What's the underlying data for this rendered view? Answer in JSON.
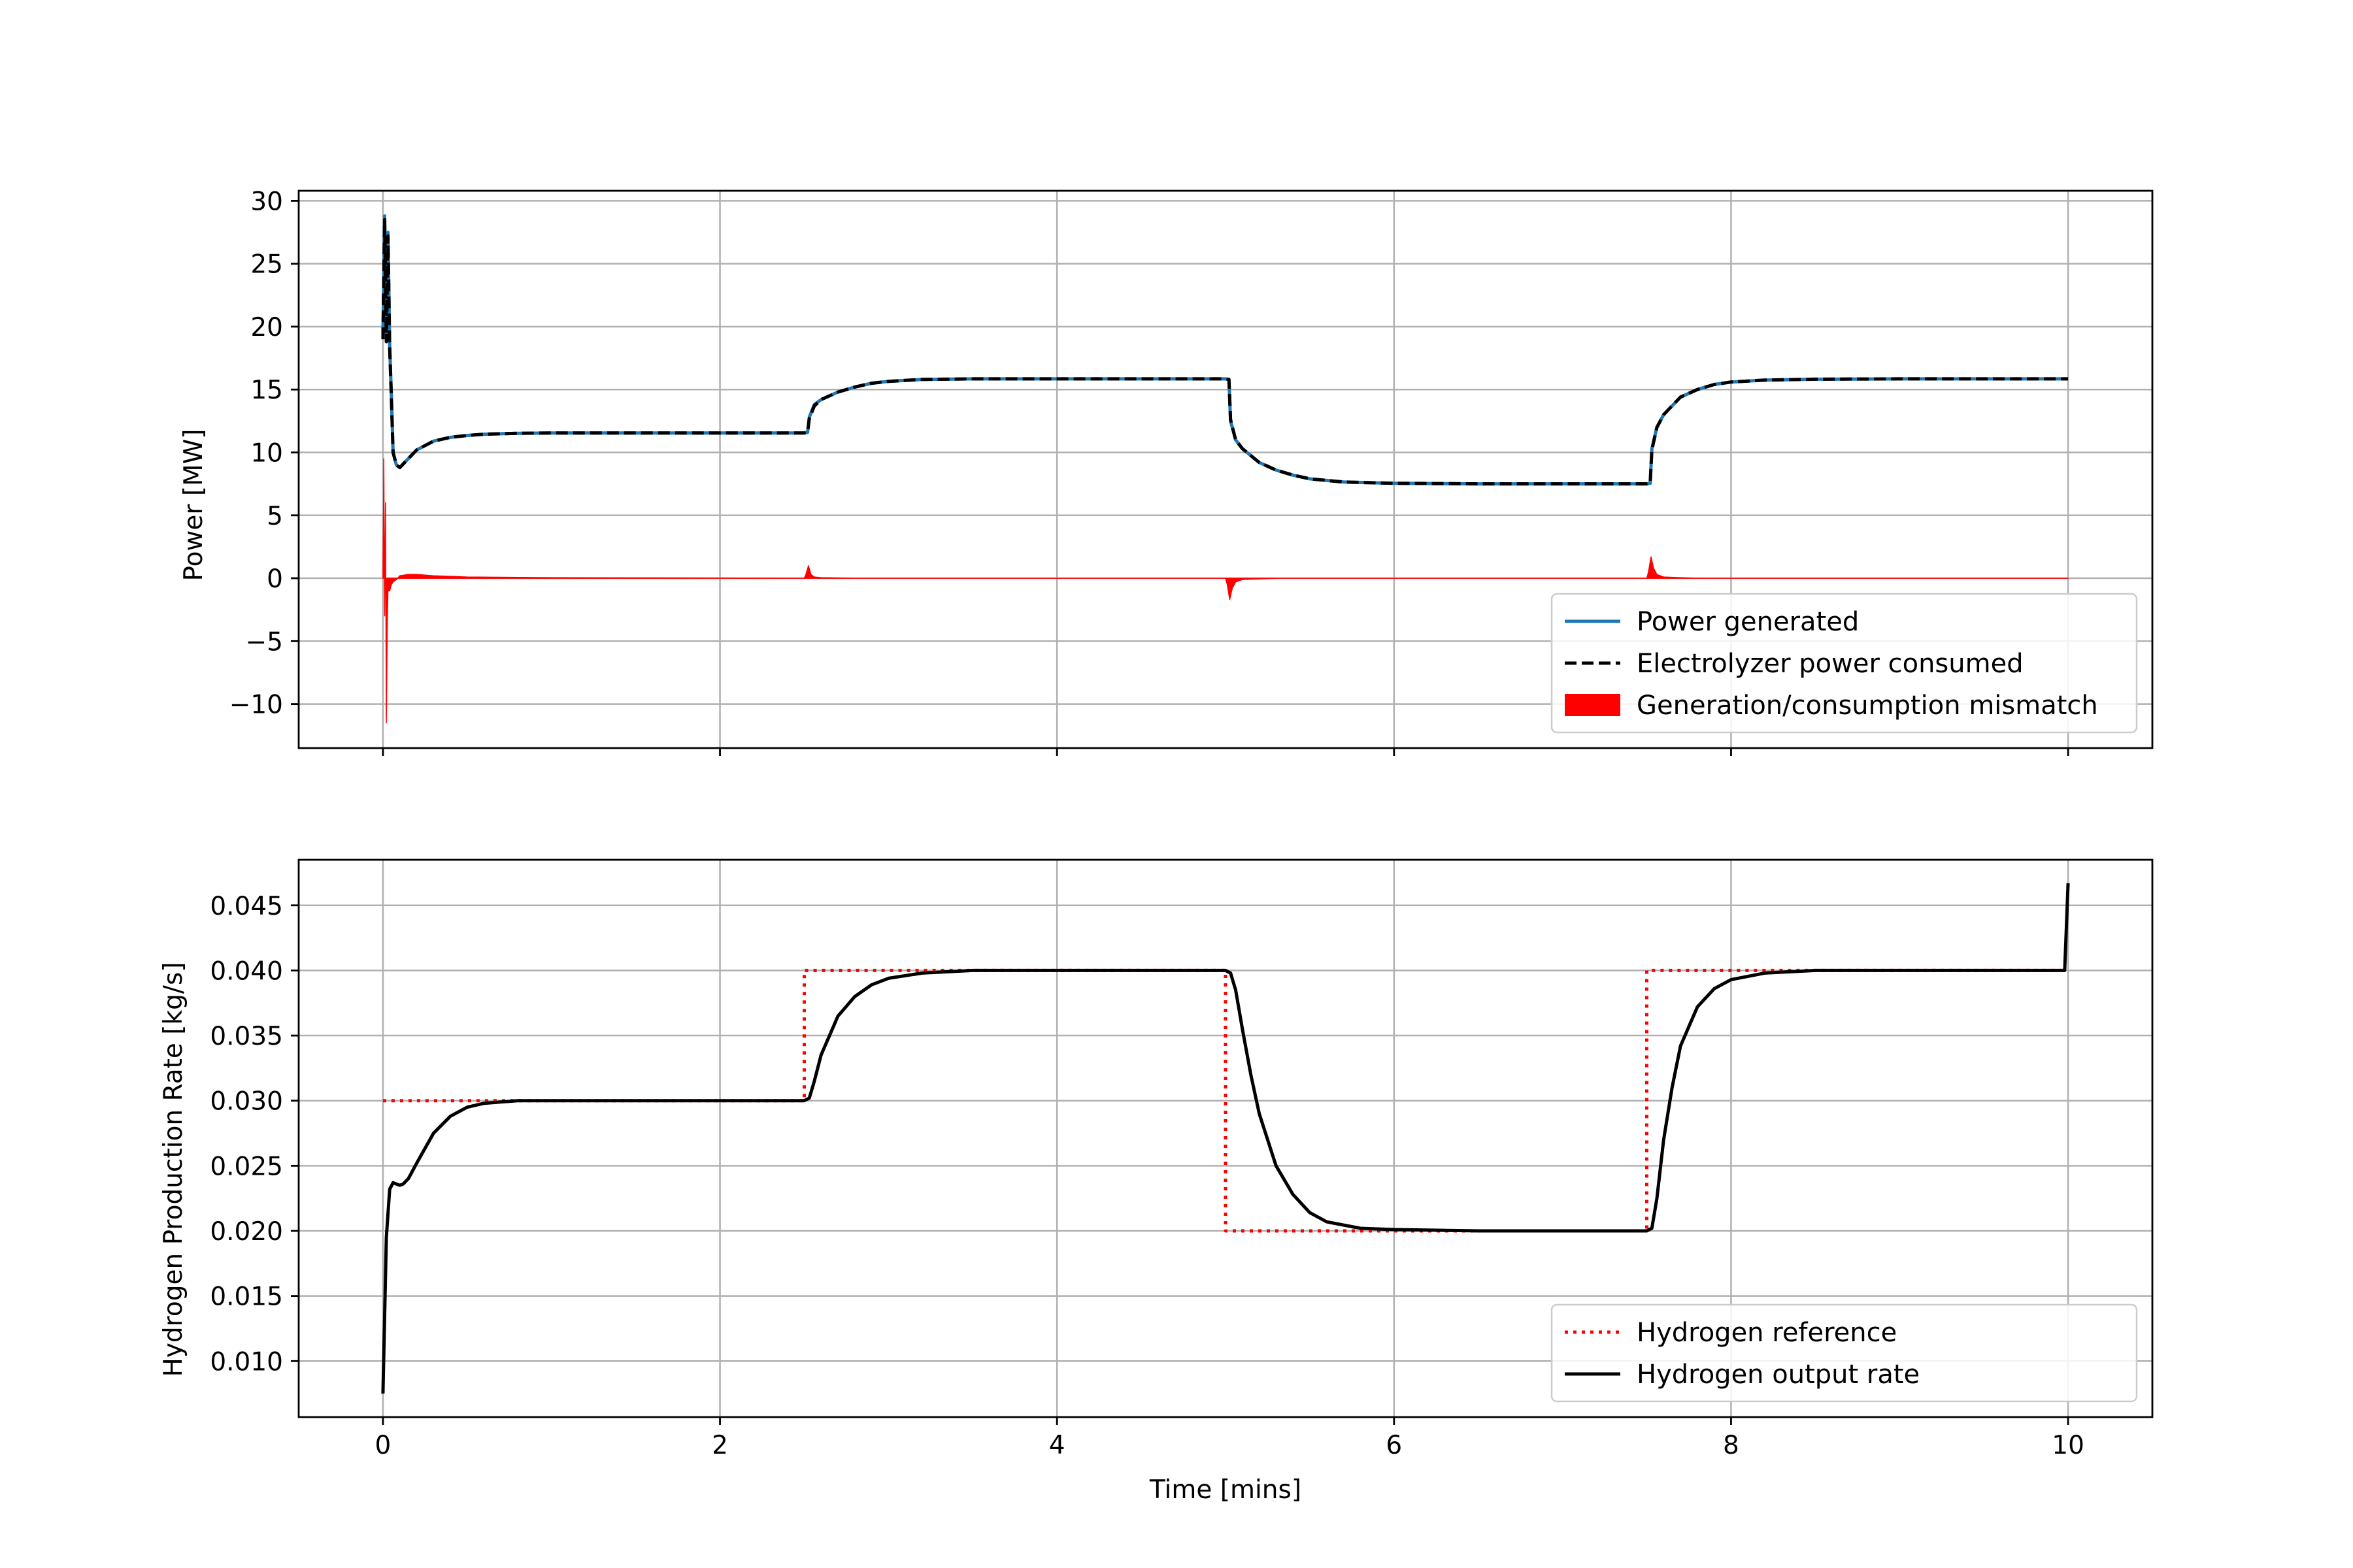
{
  "chart_data": [
    {
      "type": "line",
      "ylabel": "Power [MW]",
      "xlim": [
        -0.5,
        10.5
      ],
      "ylim": [
        -13.5,
        30.8
      ],
      "xticks": [
        0,
        2,
        4,
        6,
        8,
        10
      ],
      "show_x_tick_labels": false,
      "yticks": [
        -10,
        -5,
        0,
        5,
        10,
        15,
        20,
        25,
        30
      ],
      "ytick_labels": [
        "−10",
        "−5",
        "0",
        "5",
        "10",
        "15",
        "20",
        "25",
        "30"
      ],
      "grid": true,
      "legend_position": "lower-right",
      "series": [
        {
          "name": "Power generated",
          "style": "solid",
          "color": "#1f77b4",
          "x": [
            0,
            0.01,
            0.02,
            0.03,
            0.04,
            0.05,
            0.06,
            0.08,
            0.1,
            0.15,
            0.2,
            0.3,
            0.4,
            0.5,
            0.6,
            0.8,
            1.0,
            1.5,
            2.0,
            2.5,
            2.52,
            2.53,
            2.56,
            2.6,
            2.7,
            2.8,
            2.9,
            3.0,
            3.2,
            3.5,
            4.0,
            4.5,
            5.0,
            5.02,
            5.03,
            5.06,
            5.1,
            5.2,
            5.3,
            5.4,
            5.5,
            5.7,
            6.0,
            6.5,
            7.0,
            7.5,
            7.52,
            7.53,
            7.56,
            7.6,
            7.7,
            7.8,
            7.9,
            8.0,
            8.2,
            8.5,
            9.0,
            9.5,
            10.0
          ],
          "values": [
            19.5,
            28.8,
            19.0,
            27.5,
            18.5,
            14.5,
            10.0,
            9.0,
            8.8,
            9.5,
            10.2,
            10.9,
            11.2,
            11.35,
            11.45,
            11.52,
            11.55,
            11.55,
            11.55,
            11.55,
            11.6,
            12.8,
            13.8,
            14.2,
            14.8,
            15.2,
            15.5,
            15.65,
            15.8,
            15.85,
            15.85,
            15.85,
            15.85,
            15.8,
            12.5,
            11.0,
            10.3,
            9.2,
            8.6,
            8.2,
            7.9,
            7.65,
            7.55,
            7.5,
            7.5,
            7.5,
            7.55,
            10.3,
            12.0,
            13.0,
            14.4,
            15.0,
            15.4,
            15.6,
            15.75,
            15.82,
            15.85,
            15.85,
            15.85
          ]
        },
        {
          "name": "Electrolyzer power consumed",
          "style": "dashed",
          "color": "#000000",
          "x": [
            0,
            0.01,
            0.02,
            0.03,
            0.04,
            0.05,
            0.06,
            0.08,
            0.1,
            0.15,
            0.2,
            0.3,
            0.4,
            0.5,
            0.6,
            0.8,
            1.0,
            1.5,
            2.0,
            2.5,
            2.52,
            2.53,
            2.56,
            2.6,
            2.7,
            2.8,
            2.9,
            3.0,
            3.2,
            3.5,
            4.0,
            4.5,
            5.0,
            5.02,
            5.03,
            5.06,
            5.1,
            5.2,
            5.3,
            5.4,
            5.5,
            5.7,
            6.0,
            6.5,
            7.0,
            7.5,
            7.52,
            7.53,
            7.56,
            7.6,
            7.7,
            7.8,
            7.9,
            8.0,
            8.2,
            8.5,
            9.0,
            9.5,
            10.0
          ],
          "values": [
            19.0,
            28.5,
            18.8,
            27.2,
            18.3,
            14.3,
            10.0,
            9.0,
            8.8,
            9.5,
            10.2,
            10.9,
            11.2,
            11.35,
            11.45,
            11.52,
            11.55,
            11.55,
            11.55,
            11.55,
            11.6,
            12.7,
            13.7,
            14.2,
            14.8,
            15.2,
            15.5,
            15.65,
            15.8,
            15.85,
            15.85,
            15.85,
            15.85,
            15.8,
            12.6,
            11.0,
            10.3,
            9.2,
            8.6,
            8.2,
            7.9,
            7.65,
            7.55,
            7.5,
            7.5,
            7.5,
            7.55,
            10.2,
            12.0,
            13.0,
            14.4,
            15.0,
            15.4,
            15.6,
            15.75,
            15.82,
            15.85,
            15.85,
            15.85
          ]
        },
        {
          "name": "Generation/consumption mismatch",
          "style": "fill",
          "color": "#ff0000",
          "x": [
            0,
            0.005,
            0.01,
            0.015,
            0.02,
            0.025,
            0.03,
            0.04,
            0.05,
            0.06,
            0.08,
            0.1,
            0.15,
            0.2,
            0.3,
            0.5,
            1.0,
            2.5,
            2.51,
            2.525,
            2.54,
            2.56,
            2.6,
            2.8,
            5.0,
            5.01,
            5.025,
            5.04,
            5.06,
            5.1,
            5.3,
            7.5,
            7.51,
            7.525,
            7.54,
            7.56,
            7.6,
            7.8,
            10.0
          ],
          "values": [
            0,
            9.5,
            -3.0,
            6.0,
            -11.5,
            -4.0,
            -1.0,
            -1.0,
            -0.5,
            -0.3,
            -0.1,
            0.2,
            0.3,
            0.3,
            0.2,
            0.1,
            0.05,
            0,
            0.3,
            1.0,
            0.3,
            0.1,
            0.05,
            0,
            0,
            -0.5,
            -1.7,
            -0.8,
            -0.3,
            -0.1,
            0,
            0,
            0.5,
            1.7,
            0.8,
            0.3,
            0.1,
            0,
            0
          ]
        }
      ]
    },
    {
      "type": "line",
      "xlabel": "Time [mins]",
      "ylabel": "Hydrogen Production Rate [kg/s]",
      "xlim": [
        -0.5,
        10.5
      ],
      "ylim": [
        0.0057,
        0.0485
      ],
      "xticks": [
        0,
        2,
        4,
        6,
        8,
        10
      ],
      "xtick_labels": [
        "0",
        "2",
        "4",
        "6",
        "8",
        "10"
      ],
      "yticks": [
        0.01,
        0.015,
        0.02,
        0.025,
        0.03,
        0.035,
        0.04,
        0.045
      ],
      "ytick_labels": [
        "0.010",
        "0.015",
        "0.020",
        "0.025",
        "0.030",
        "0.035",
        "0.040",
        "0.045"
      ],
      "grid": true,
      "legend_position": "lower-right",
      "series": [
        {
          "name": "Hydrogen reference",
          "style": "dotted",
          "color": "#ff0000",
          "x": [
            0,
            2.5,
            2.5,
            5.0,
            5.0,
            7.5,
            7.5,
            10.0
          ],
          "values": [
            0.03,
            0.03,
            0.04,
            0.04,
            0.02,
            0.02,
            0.04,
            0.04
          ]
        },
        {
          "name": "Hydrogen output rate",
          "style": "solid",
          "color": "#000000",
          "x": [
            0,
            0.02,
            0.04,
            0.06,
            0.08,
            0.1,
            0.12,
            0.15,
            0.2,
            0.3,
            0.4,
            0.5,
            0.6,
            0.8,
            1.0,
            1.5,
            2.0,
            2.5,
            2.53,
            2.56,
            2.6,
            2.65,
            2.7,
            2.8,
            2.9,
            3.0,
            3.2,
            3.5,
            4.0,
            4.5,
            5.0,
            5.03,
            5.06,
            5.1,
            5.15,
            5.2,
            5.3,
            5.4,
            5.5,
            5.6,
            5.8,
            6.0,
            6.5,
            7.0,
            7.5,
            7.53,
            7.56,
            7.6,
            7.65,
            7.7,
            7.8,
            7.9,
            8.0,
            8.2,
            8.5,
            9.0,
            9.5,
            9.98,
            10.0
          ],
          "values": [
            0.0075,
            0.0195,
            0.0232,
            0.0237,
            0.0236,
            0.0235,
            0.0236,
            0.024,
            0.0252,
            0.0275,
            0.0288,
            0.0295,
            0.0298,
            0.03,
            0.03,
            0.03,
            0.03,
            0.03,
            0.0302,
            0.0315,
            0.0335,
            0.035,
            0.0365,
            0.038,
            0.0389,
            0.0394,
            0.0398,
            0.04,
            0.04,
            0.04,
            0.04,
            0.0398,
            0.0385,
            0.0355,
            0.032,
            0.029,
            0.025,
            0.0228,
            0.0214,
            0.0207,
            0.0202,
            0.0201,
            0.02,
            0.02,
            0.02,
            0.0202,
            0.0225,
            0.027,
            0.031,
            0.0342,
            0.0372,
            0.0386,
            0.0393,
            0.0398,
            0.04,
            0.04,
            0.04,
            0.04,
            0.0467
          ]
        }
      ]
    }
  ]
}
